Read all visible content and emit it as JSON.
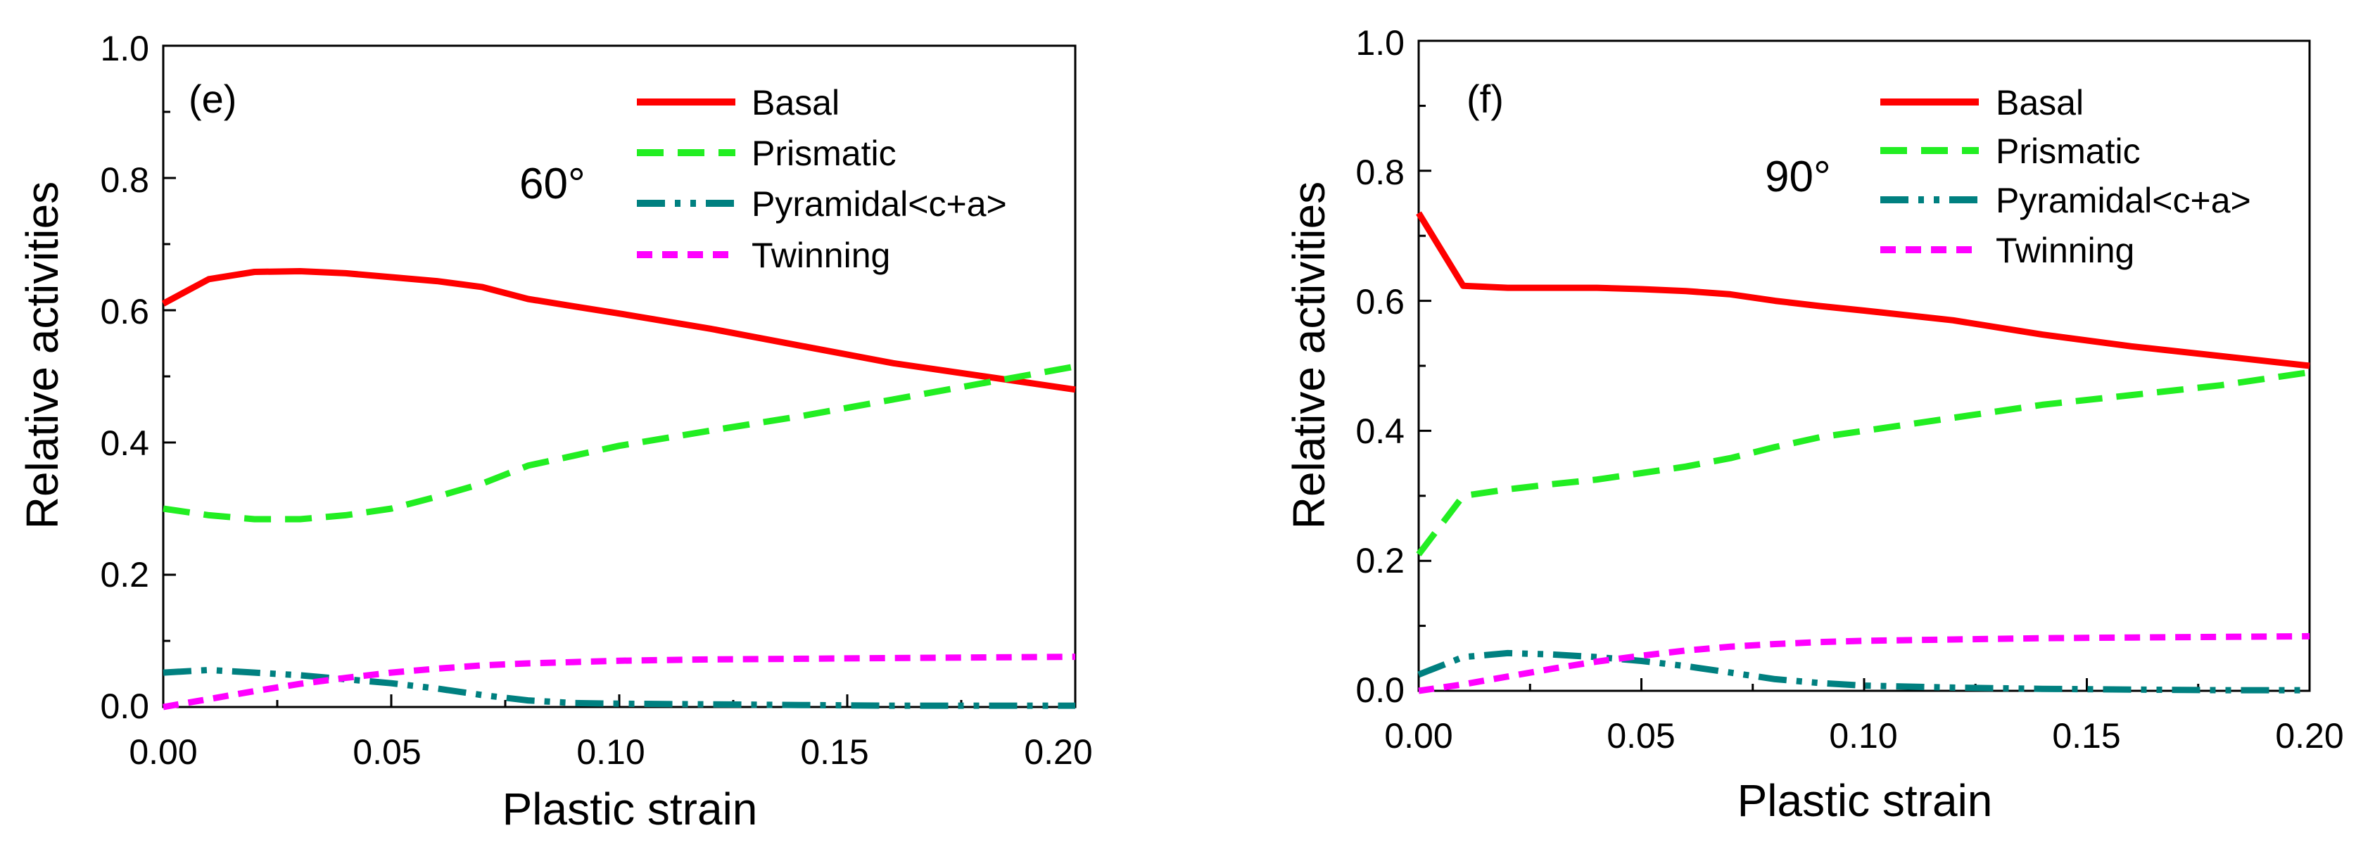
{
  "chart_data": [
    {
      "type": "line",
      "panel_label": "(e)",
      "angle_label": "60°",
      "xlabel": "Plastic strain",
      "ylabel": "Relative activities",
      "xlim": [
        0,
        0.2
      ],
      "ylim": [
        0,
        1.0
      ],
      "x_ticks": [
        "0.00",
        "0.05",
        "0.10",
        "0.15",
        "0.20"
      ],
      "y_ticks": [
        "0.0",
        "0.2",
        "0.4",
        "0.6",
        "0.8",
        "1.0"
      ],
      "legend_position": "top-right",
      "series": [
        {
          "name": "Basal",
          "color": "#ff0000",
          "style": "solid",
          "x": [
            0,
            0.01,
            0.02,
            0.03,
            0.04,
            0.05,
            0.06,
            0.07,
            0.08,
            0.09,
            0.1,
            0.12,
            0.14,
            0.16,
            0.18,
            0.2
          ],
          "y": [
            0.61,
            0.647,
            0.658,
            0.659,
            0.656,
            0.65,
            0.644,
            0.635,
            0.617,
            0.606,
            0.595,
            0.572,
            0.546,
            0.52,
            0.5,
            0.48
          ]
        },
        {
          "name": "Prismatic",
          "color": "#22ee22",
          "style": "dash",
          "x": [
            0,
            0.01,
            0.02,
            0.03,
            0.04,
            0.05,
            0.06,
            0.07,
            0.08,
            0.09,
            0.1,
            0.12,
            0.14,
            0.16,
            0.18,
            0.2
          ],
          "y": [
            0.3,
            0.29,
            0.284,
            0.284,
            0.29,
            0.3,
            0.318,
            0.338,
            0.365,
            0.38,
            0.395,
            0.418,
            0.44,
            0.465,
            0.49,
            0.515
          ]
        },
        {
          "name": "Pyramidal<c+a>",
          "color": "#008080",
          "style": "dashdotdot",
          "x": [
            0,
            0.01,
            0.02,
            0.03,
            0.04,
            0.05,
            0.06,
            0.07,
            0.08,
            0.09,
            0.1,
            0.12,
            0.14,
            0.16,
            0.18,
            0.2
          ],
          "y": [
            0.052,
            0.056,
            0.052,
            0.048,
            0.042,
            0.036,
            0.028,
            0.018,
            0.01,
            0.006,
            0.005,
            0.004,
            0.003,
            0.002,
            0.002,
            0.002
          ]
        },
        {
          "name": "Twinning",
          "color": "#ff00ff",
          "style": "shortdash",
          "x": [
            0,
            0.01,
            0.02,
            0.03,
            0.04,
            0.05,
            0.06,
            0.07,
            0.08,
            0.09,
            0.1,
            0.12,
            0.14,
            0.16,
            0.18,
            0.2
          ],
          "y": [
            0.0,
            0.012,
            0.024,
            0.035,
            0.044,
            0.052,
            0.058,
            0.063,
            0.066,
            0.068,
            0.07,
            0.072,
            0.073,
            0.074,
            0.075,
            0.076
          ]
        }
      ]
    },
    {
      "type": "line",
      "panel_label": "(f)",
      "angle_label": "90°",
      "xlabel": "Plastic strain",
      "ylabel": "Relative activities",
      "xlim": [
        0,
        0.2
      ],
      "ylim": [
        0,
        1.0
      ],
      "x_ticks": [
        "0.00",
        "0.05",
        "0.10",
        "0.15",
        "0.20"
      ],
      "y_ticks": [
        "0.0",
        "0.2",
        "0.4",
        "0.6",
        "0.8",
        "1.0"
      ],
      "legend_position": "top-right",
      "series": [
        {
          "name": "Basal",
          "color": "#ff0000",
          "style": "solid",
          "x": [
            0,
            0.01,
            0.02,
            0.03,
            0.04,
            0.05,
            0.06,
            0.07,
            0.08,
            0.09,
            0.1,
            0.12,
            0.14,
            0.16,
            0.18,
            0.2
          ],
          "y": [
            0.735,
            0.623,
            0.62,
            0.62,
            0.62,
            0.618,
            0.615,
            0.61,
            0.6,
            0.592,
            0.585,
            0.57,
            0.548,
            0.53,
            0.515,
            0.5
          ]
        },
        {
          "name": "Prismatic",
          "color": "#22ee22",
          "style": "dash",
          "x": [
            0,
            0.01,
            0.02,
            0.03,
            0.04,
            0.05,
            0.06,
            0.07,
            0.08,
            0.09,
            0.1,
            0.12,
            0.14,
            0.16,
            0.18,
            0.2
          ],
          "y": [
            0.21,
            0.3,
            0.31,
            0.318,
            0.325,
            0.335,
            0.345,
            0.358,
            0.375,
            0.39,
            0.4,
            0.42,
            0.44,
            0.455,
            0.47,
            0.49
          ]
        },
        {
          "name": "Pyramidal<c+a>",
          "color": "#008080",
          "style": "dashdotdot",
          "x": [
            0,
            0.01,
            0.02,
            0.03,
            0.04,
            0.05,
            0.06,
            0.07,
            0.08,
            0.09,
            0.1,
            0.12,
            0.14,
            0.16,
            0.18,
            0.2
          ],
          "y": [
            0.025,
            0.052,
            0.058,
            0.056,
            0.052,
            0.046,
            0.038,
            0.028,
            0.018,
            0.012,
            0.008,
            0.005,
            0.003,
            0.002,
            0.001,
            0.001
          ]
        },
        {
          "name": "Twinning",
          "color": "#ff00ff",
          "style": "shortdash",
          "x": [
            0,
            0.01,
            0.02,
            0.03,
            0.04,
            0.05,
            0.06,
            0.07,
            0.08,
            0.09,
            0.1,
            0.12,
            0.14,
            0.16,
            0.18,
            0.2
          ],
          "y": [
            0.0,
            0.01,
            0.022,
            0.034,
            0.045,
            0.054,
            0.062,
            0.068,
            0.072,
            0.075,
            0.077,
            0.079,
            0.081,
            0.082,
            0.083,
            0.084
          ]
        }
      ]
    }
  ]
}
